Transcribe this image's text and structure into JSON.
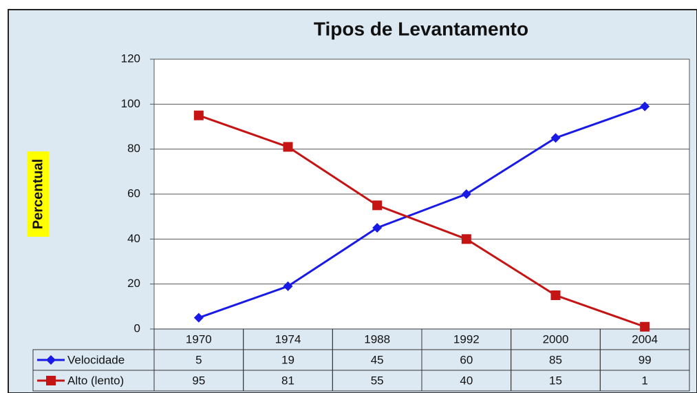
{
  "chart_data": {
    "type": "line",
    "title": "Tipos de Levantamento",
    "y_label": "Percentual",
    "categories": [
      "1970",
      "1974",
      "1988",
      "1992",
      "2000",
      "2004"
    ],
    "series": [
      {
        "name": "Velocidade",
        "color": "#1a1ae6",
        "marker": "diamond",
        "values": [
          5,
          19,
          45,
          60,
          85,
          99
        ]
      },
      {
        "name": "Alto (lento)",
        "color": "#c41414",
        "marker": "square",
        "values": [
          95,
          81,
          55,
          40,
          15,
          1
        ]
      }
    ],
    "ylim": [
      0,
      120
    ],
    "yticks": [
      0,
      20,
      40,
      60,
      80,
      100,
      120
    ],
    "grid": true,
    "data_table": true
  }
}
